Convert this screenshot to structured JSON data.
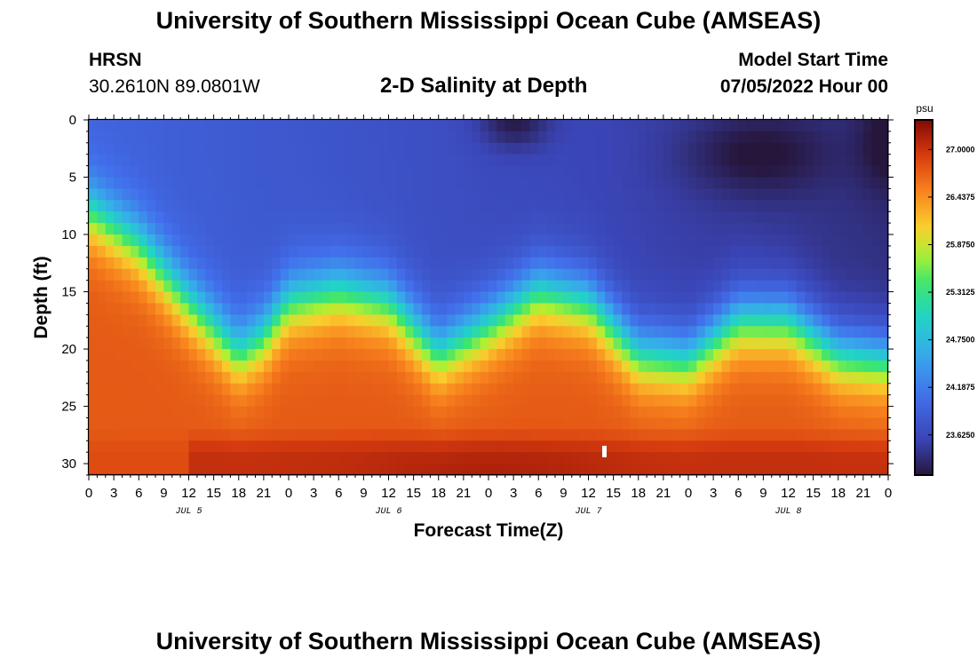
{
  "header": {
    "title": "University of Southern Mississippi Ocean Cube (AMSEAS)",
    "station": "HRSN",
    "coordinates": "30.2610N  89.0801W",
    "subtitle": "2-D Salinity at Depth",
    "model_start_label": "Model Start Time",
    "model_start_value": "07/05/2022 Hour 00"
  },
  "footer": {
    "title": "University of Southern Mississippi Ocean Cube (AMSEAS)"
  },
  "chart_data": {
    "type": "heatmap",
    "title": "2-D Salinity at Depth",
    "xlabel": "Forecast Time(Z)",
    "ylabel": "Depth (ft)",
    "xlim": [
      0,
      96
    ],
    "ylim": [
      31,
      0
    ],
    "x_ticks": [
      0,
      3,
      6,
      9,
      12,
      15,
      18,
      21,
      24,
      27,
      30,
      33,
      36,
      39,
      42,
      45,
      48,
      51,
      54,
      57,
      60,
      63,
      66,
      69,
      72,
      75,
      78,
      81,
      84,
      87,
      90,
      93,
      96
    ],
    "x_tick_labels": [
      "0",
      "3",
      "6",
      "9",
      "12",
      "15",
      "18",
      "21",
      "0",
      "3",
      "6",
      "9",
      "12",
      "15",
      "18",
      "21",
      "0",
      "3",
      "6",
      "9",
      "12",
      "15",
      "18",
      "21",
      "0",
      "3",
      "6",
      "9",
      "12",
      "15",
      "18",
      "21",
      "0"
    ],
    "y_ticks": [
      0,
      5,
      10,
      15,
      20,
      25,
      30
    ],
    "y_tick_labels": [
      "0",
      "5",
      "10",
      "15",
      "20",
      "25",
      "30"
    ],
    "day_labels": [
      {
        "hour": 12,
        "label": "JUL 5"
      },
      {
        "hour": 36,
        "label": "JUL 6"
      },
      {
        "hour": 60,
        "label": "JUL 7"
      },
      {
        "hour": 84,
        "label": "JUL 8"
      }
    ],
    "colorbar": {
      "unit": "psu",
      "min": 23.15,
      "max": 27.35,
      "tick_values": [
        27.0,
        26.4375,
        25.875,
        25.3125,
        24.75,
        24.1875,
        23.625
      ],
      "tick_labels": [
        "27.0000",
        "26.4375",
        "25.8750",
        "25.3125",
        "24.7500",
        "24.1875",
        "23.6250"
      ]
    },
    "halocline_depth_ft": {
      "hours": [
        0,
        6,
        12,
        18,
        21,
        24,
        30,
        36,
        42,
        48,
        54,
        60,
        66,
        72,
        78,
        84,
        90,
        96
      ],
      "values": [
        8,
        11,
        16,
        20.5,
        19,
        16,
        15,
        16,
        20.5,
        18,
        15,
        16,
        20.5,
        21,
        17.5,
        17.5,
        20.5,
        21
      ]
    }
  }
}
